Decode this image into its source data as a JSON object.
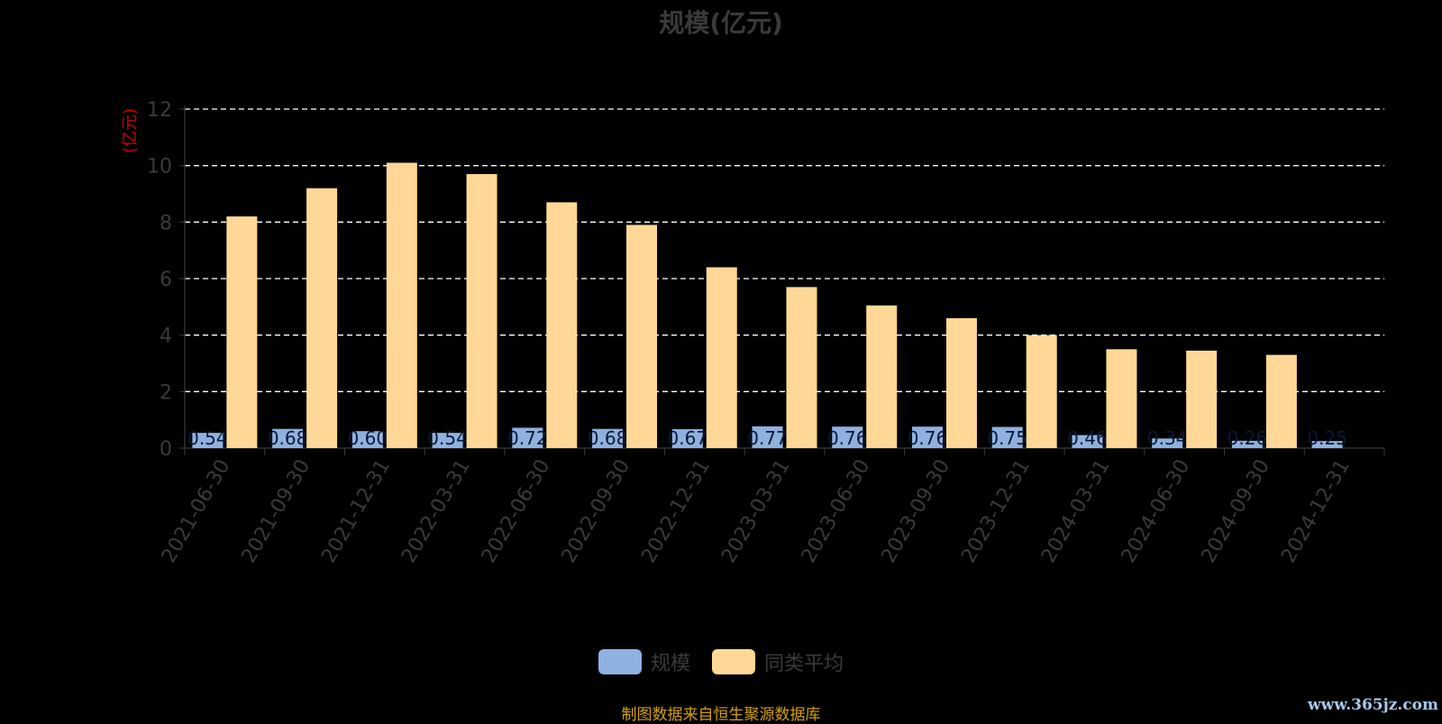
{
  "chart_data": {
    "type": "bar",
    "title": "规模(亿元)",
    "ylabel": "(亿元)",
    "xlabel": "",
    "ylim": [
      0,
      12
    ],
    "yticks": [
      0,
      2,
      4,
      6,
      8,
      10,
      12
    ],
    "grid": true,
    "legend_position": "bottom",
    "categories": [
      "2021-06-30",
      "2021-09-30",
      "2021-12-31",
      "2022-03-31",
      "2022-06-30",
      "2022-09-30",
      "2022-12-31",
      "2023-03-31",
      "2023-06-30",
      "2023-09-30",
      "2023-12-31",
      "2024-03-31",
      "2024-06-30",
      "2024-09-30",
      "2024-12-31"
    ],
    "series": [
      {
        "name": "规模",
        "color": "#8fb1e0",
        "values": [
          0.54,
          0.68,
          0.6,
          0.54,
          0.72,
          0.68,
          0.67,
          0.77,
          0.76,
          0.76,
          0.75,
          0.46,
          0.34,
          0.26,
          0.25
        ],
        "data_labels": [
          "0.54",
          "0.68",
          "0.60",
          "0.54",
          "0.72",
          "0.68",
          "0.67",
          "0.77",
          "0.76",
          "0.76",
          "0.75",
          "0.46",
          "0.34",
          "0.26",
          "0.25"
        ]
      },
      {
        "name": "同类平均",
        "color": "#ffd897",
        "values": [
          8.2,
          9.2,
          10.1,
          9.7,
          8.7,
          7.9,
          6.4,
          5.7,
          5.05,
          4.6,
          4.0,
          3.5,
          3.45,
          3.3,
          null
        ]
      }
    ]
  },
  "footer": {
    "source": "制图数据来自恒生聚源数据库",
    "watermark": "www.365jz.com"
  },
  "colors": {
    "background": "#000000",
    "grid": "#ffffff",
    "axis_text": "#3a3a3a",
    "ylabel": "#cc0000",
    "footer": "#d4a000"
  }
}
